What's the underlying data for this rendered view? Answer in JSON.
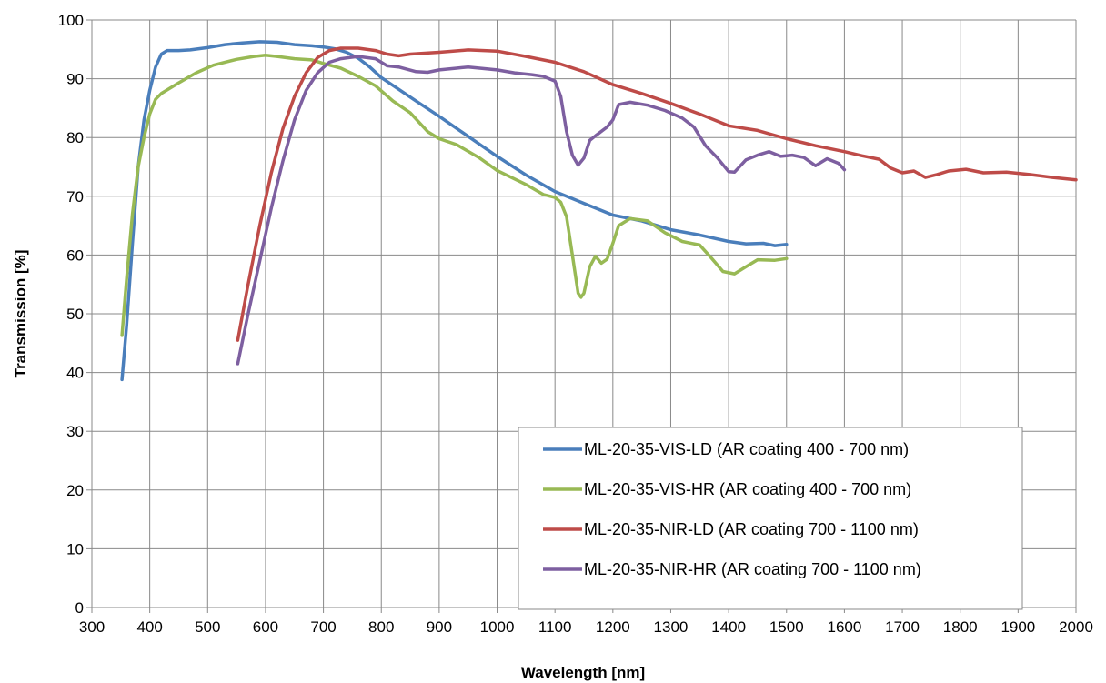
{
  "chart_data": {
    "type": "line",
    "title": "",
    "xlabel": "Wavelength [nm]",
    "ylabel": "Transmission [%]",
    "xlim": [
      300,
      2000
    ],
    "ylim": [
      0,
      100
    ],
    "xticks": [
      300,
      400,
      500,
      600,
      700,
      800,
      900,
      1000,
      1100,
      1200,
      1300,
      1400,
      1500,
      1600,
      1700,
      1800,
      1900,
      2000
    ],
    "yticks": [
      0,
      10,
      20,
      30,
      40,
      50,
      60,
      70,
      80,
      90,
      100
    ],
    "grid": true,
    "legend_position": "bottom-right",
    "series": [
      {
        "name": "ML-20-35-VIS-LD (AR coating 400 - 700 nm)",
        "color": "#4a7ebb",
        "points": [
          [
            352,
            38.8
          ],
          [
            360,
            48
          ],
          [
            370,
            62
          ],
          [
            380,
            75
          ],
          [
            390,
            83
          ],
          [
            400,
            88
          ],
          [
            410,
            92
          ],
          [
            420,
            94.2
          ],
          [
            430,
            94.8
          ],
          [
            450,
            94.8
          ],
          [
            470,
            94.9
          ],
          [
            500,
            95.3
          ],
          [
            530,
            95.8
          ],
          [
            560,
            96.1
          ],
          [
            590,
            96.3
          ],
          [
            620,
            96.2
          ],
          [
            650,
            95.8
          ],
          [
            680,
            95.6
          ],
          [
            700,
            95.4
          ],
          [
            720,
            95.1
          ],
          [
            740,
            94.5
          ],
          [
            760,
            93.5
          ],
          [
            780,
            92.0
          ],
          [
            800,
            90.2
          ],
          [
            830,
            88.2
          ],
          [
            860,
            86.2
          ],
          [
            900,
            83.6
          ],
          [
            950,
            80.2
          ],
          [
            1000,
            76.8
          ],
          [
            1050,
            73.6
          ],
          [
            1100,
            70.8
          ],
          [
            1150,
            68.8
          ],
          [
            1200,
            66.8
          ],
          [
            1250,
            65.8
          ],
          [
            1300,
            64.3
          ],
          [
            1350,
            63.4
          ],
          [
            1400,
            62.3
          ],
          [
            1430,
            61.9
          ],
          [
            1460,
            62.0
          ],
          [
            1480,
            61.6
          ],
          [
            1500,
            61.8
          ]
        ]
      },
      {
        "name": "ML-20-35-VIS-HR (AR coating 400 - 700 nm)",
        "color": "#98b954",
        "points": [
          [
            352,
            46.3
          ],
          [
            360,
            56
          ],
          [
            370,
            67
          ],
          [
            380,
            75
          ],
          [
            390,
            80
          ],
          [
            400,
            84
          ],
          [
            410,
            86.5
          ],
          [
            420,
            87.5
          ],
          [
            450,
            89.3
          ],
          [
            480,
            91
          ],
          [
            510,
            92.3
          ],
          [
            550,
            93.3
          ],
          [
            580,
            93.8
          ],
          [
            600,
            94.0
          ],
          [
            620,
            93.8
          ],
          [
            650,
            93.4
          ],
          [
            680,
            93.2
          ],
          [
            700,
            92.6
          ],
          [
            730,
            91.8
          ],
          [
            760,
            90.4
          ],
          [
            790,
            88.8
          ],
          [
            820,
            86.2
          ],
          [
            850,
            84.2
          ],
          [
            880,
            81.0
          ],
          [
            900,
            79.8
          ],
          [
            930,
            78.8
          ],
          [
            970,
            76.5
          ],
          [
            1000,
            74.4
          ],
          [
            1050,
            72.0
          ],
          [
            1080,
            70.3
          ],
          [
            1100,
            69.8
          ],
          [
            1110,
            69.0
          ],
          [
            1120,
            66.5
          ],
          [
            1130,
            60.0
          ],
          [
            1140,
            53.5
          ],
          [
            1145,
            52.8
          ],
          [
            1150,
            53.5
          ],
          [
            1160,
            58.0
          ],
          [
            1170,
            59.8
          ],
          [
            1180,
            58.6
          ],
          [
            1190,
            59.3
          ],
          [
            1200,
            62.0
          ],
          [
            1210,
            65.0
          ],
          [
            1230,
            66.2
          ],
          [
            1260,
            65.8
          ],
          [
            1290,
            63.8
          ],
          [
            1320,
            62.3
          ],
          [
            1350,
            61.7
          ],
          [
            1370,
            59.5
          ],
          [
            1390,
            57.2
          ],
          [
            1410,
            56.8
          ],
          [
            1430,
            58.0
          ],
          [
            1450,
            59.2
          ],
          [
            1480,
            59.1
          ],
          [
            1500,
            59.4
          ]
        ]
      },
      {
        "name": "ML-20-35-NIR-LD (AR coating 700 - 1100 nm)",
        "color": "#be4b48",
        "points": [
          [
            552,
            45.5
          ],
          [
            570,
            55
          ],
          [
            590,
            65
          ],
          [
            610,
            74
          ],
          [
            630,
            81.5
          ],
          [
            650,
            87
          ],
          [
            670,
            91
          ],
          [
            690,
            93.6
          ],
          [
            710,
            94.8
          ],
          [
            730,
            95.2
          ],
          [
            760,
            95.2
          ],
          [
            790,
            94.8
          ],
          [
            810,
            94.2
          ],
          [
            830,
            93.9
          ],
          [
            850,
            94.2
          ],
          [
            900,
            94.5
          ],
          [
            950,
            94.9
          ],
          [
            1000,
            94.7
          ],
          [
            1050,
            93.8
          ],
          [
            1100,
            92.8
          ],
          [
            1150,
            91.2
          ],
          [
            1200,
            89.0
          ],
          [
            1250,
            87.5
          ],
          [
            1300,
            85.8
          ],
          [
            1350,
            84.0
          ],
          [
            1400,
            82.0
          ],
          [
            1450,
            81.2
          ],
          [
            1500,
            79.8
          ],
          [
            1550,
            78.6
          ],
          [
            1600,
            77.6
          ],
          [
            1630,
            76.9
          ],
          [
            1660,
            76.3
          ],
          [
            1680,
            74.8
          ],
          [
            1700,
            74.0
          ],
          [
            1720,
            74.3
          ],
          [
            1740,
            73.2
          ],
          [
            1760,
            73.7
          ],
          [
            1780,
            74.3
          ],
          [
            1810,
            74.6
          ],
          [
            1840,
            74.0
          ],
          [
            1880,
            74.1
          ],
          [
            1920,
            73.7
          ],
          [
            1960,
            73.2
          ],
          [
            2000,
            72.8
          ]
        ]
      },
      {
        "name": "ML-20-35-NIR-HR (AR coating 700 - 1100 nm)",
        "color": "#7d5fa0",
        "points": [
          [
            552,
            41.5
          ],
          [
            570,
            50
          ],
          [
            590,
            59
          ],
          [
            610,
            68
          ],
          [
            630,
            76
          ],
          [
            650,
            83
          ],
          [
            670,
            88
          ],
          [
            690,
            91
          ],
          [
            710,
            92.8
          ],
          [
            730,
            93.4
          ],
          [
            760,
            93.8
          ],
          [
            790,
            93.4
          ],
          [
            810,
            92.2
          ],
          [
            830,
            92.0
          ],
          [
            860,
            91.2
          ],
          [
            880,
            91.1
          ],
          [
            900,
            91.5
          ],
          [
            930,
            91.8
          ],
          [
            950,
            92.0
          ],
          [
            980,
            91.7
          ],
          [
            1000,
            91.5
          ],
          [
            1030,
            91.0
          ],
          [
            1060,
            90.7
          ],
          [
            1080,
            90.4
          ],
          [
            1100,
            89.6
          ],
          [
            1110,
            87.0
          ],
          [
            1120,
            81.0
          ],
          [
            1130,
            77.0
          ],
          [
            1140,
            75.3
          ],
          [
            1150,
            76.5
          ],
          [
            1160,
            79.5
          ],
          [
            1170,
            80.3
          ],
          [
            1190,
            81.8
          ],
          [
            1200,
            83.0
          ],
          [
            1210,
            85.6
          ],
          [
            1230,
            86.0
          ],
          [
            1260,
            85.5
          ],
          [
            1290,
            84.6
          ],
          [
            1320,
            83.3
          ],
          [
            1340,
            81.8
          ],
          [
            1360,
            78.6
          ],
          [
            1380,
            76.6
          ],
          [
            1400,
            74.2
          ],
          [
            1410,
            74.1
          ],
          [
            1430,
            76.2
          ],
          [
            1450,
            77.0
          ],
          [
            1470,
            77.6
          ],
          [
            1490,
            76.8
          ],
          [
            1510,
            77.0
          ],
          [
            1530,
            76.6
          ],
          [
            1550,
            75.2
          ],
          [
            1570,
            76.4
          ],
          [
            1590,
            75.6
          ],
          [
            1600,
            74.5
          ]
        ]
      }
    ]
  }
}
